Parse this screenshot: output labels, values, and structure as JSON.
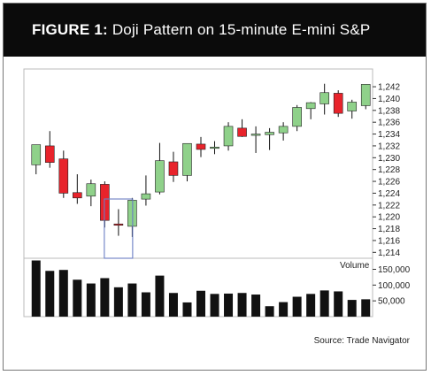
{
  "title": {
    "figure_label": "FIGURE 1:",
    "text": "Doji Pattern on 15-minute E-mini S&P"
  },
  "source": "Source: Trade Navigator",
  "colors": {
    "up": "#8fd18a",
    "down": "#e8232b",
    "volume": "#111111",
    "highlight": "#6b7fc4"
  },
  "chart_data": [
    {
      "type": "candlestick",
      "title": "Doji Pattern on 15-minute E-mini S&P",
      "yaxis_side": "right",
      "ylim": [
        1213,
        1245
      ],
      "yticks": [
        1214,
        1216,
        1218,
        1220,
        1222,
        1224,
        1226,
        1228,
        1230,
        1232,
        1234,
        1236,
        1238,
        1240,
        1242
      ],
      "ytick_labels": [
        "1,214",
        "1,216",
        "1,218",
        "1,220",
        "1,222",
        "1,224",
        "1,226",
        "1,228",
        "1,230",
        "1,232",
        "1,234",
        "1,236",
        "1,238",
        "1,240",
        "1,242"
      ],
      "grid": false,
      "candles": [
        {
          "open": 1228.8,
          "high": 1232.2,
          "low": 1227.2,
          "close": 1232.2
        },
        {
          "open": 1232.0,
          "high": 1234.5,
          "low": 1228.3,
          "close": 1229.2
        },
        {
          "open": 1229.8,
          "high": 1231.2,
          "low": 1223.2,
          "close": 1224.0
        },
        {
          "open": 1224.1,
          "high": 1227.2,
          "low": 1222.2,
          "close": 1223.2
        },
        {
          "open": 1223.5,
          "high": 1226.3,
          "low": 1221.8,
          "close": 1225.6
        },
        {
          "open": 1225.5,
          "high": 1226.0,
          "low": 1218.2,
          "close": 1219.4
        },
        {
          "open": 1218.8,
          "high": 1221.3,
          "low": 1216.8,
          "close": 1218.6
        },
        {
          "open": 1218.4,
          "high": 1223.2,
          "low": 1216.6,
          "close": 1222.8
        },
        {
          "open": 1223.0,
          "high": 1227.0,
          "low": 1221.9,
          "close": 1223.9
        },
        {
          "open": 1224.2,
          "high": 1232.5,
          "low": 1223.8,
          "close": 1229.5
        },
        {
          "open": 1229.3,
          "high": 1231.0,
          "low": 1225.9,
          "close": 1227.0
        },
        {
          "open": 1227.0,
          "high": 1232.4,
          "low": 1226.0,
          "close": 1232.4
        },
        {
          "open": 1232.3,
          "high": 1233.5,
          "low": 1230.1,
          "close": 1231.4
        },
        {
          "open": 1231.8,
          "high": 1232.8,
          "low": 1230.6,
          "close": 1231.8
        },
        {
          "open": 1232.0,
          "high": 1236.0,
          "low": 1231.2,
          "close": 1235.3
        },
        {
          "open": 1235.0,
          "high": 1236.5,
          "low": 1233.5,
          "close": 1233.6
        },
        {
          "open": 1233.8,
          "high": 1235.3,
          "low": 1230.8,
          "close": 1234.0
        },
        {
          "open": 1233.9,
          "high": 1235.0,
          "low": 1231.3,
          "close": 1234.3
        },
        {
          "open": 1234.2,
          "high": 1236.0,
          "low": 1232.9,
          "close": 1235.3
        },
        {
          "open": 1235.3,
          "high": 1238.9,
          "low": 1234.5,
          "close": 1238.5
        },
        {
          "open": 1238.3,
          "high": 1239.4,
          "low": 1236.5,
          "close": 1239.3
        },
        {
          "open": 1239.1,
          "high": 1242.5,
          "low": 1237.3,
          "close": 1241.0
        },
        {
          "open": 1240.9,
          "high": 1241.4,
          "low": 1236.9,
          "close": 1237.5
        },
        {
          "open": 1237.9,
          "high": 1239.8,
          "low": 1236.6,
          "close": 1239.4
        },
        {
          "open": 1238.8,
          "high": 1242.4,
          "low": 1238.2,
          "close": 1242.4
        }
      ],
      "highlight_index": 6
    },
    {
      "type": "bar",
      "ylabel": "Volume",
      "yaxis_side": "right",
      "ylim": [
        0,
        185000
      ],
      "yticks": [
        50000,
        100000,
        150000
      ],
      "ytick_labels": [
        "50,000",
        "100,000",
        "150,000"
      ],
      "values": [
        178000,
        145000,
        148000,
        117000,
        105000,
        122000,
        93000,
        105000,
        77000,
        130000,
        75000,
        45000,
        82000,
        72000,
        73000,
        75000,
        70000,
        33000,
        46000,
        63000,
        72000,
        83000,
        80000,
        53000,
        55000
      ]
    }
  ]
}
